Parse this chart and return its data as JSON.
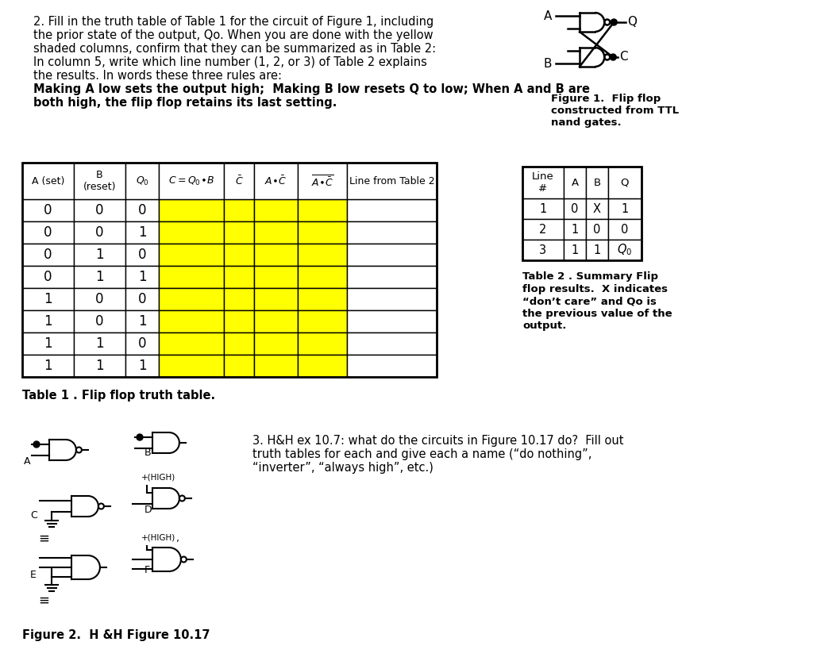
{
  "bg_color": "#ffffff",
  "para_lines_normal": [
    "2. Fill in the truth table of Table 1 for the circuit of Figure 1, including",
    "the prior state of the output, Qo. When you are done with the yellow",
    "shaded columns, confirm that they can be summarized as in Table 2:",
    "In column 5, write which line number (1, 2, or 3) of Table 2 explains",
    "the results. In words these three rules are:  "
  ],
  "para_bold_line1": "Making A low sets the output high;  Making B low resets Q to low; When A and B are",
  "para_bold_line2": "both high, the flip flop retains its last setting.",
  "figure1_caption": "Figure 1.  Flip flop\nconstructed from TTL\nnand gates.",
  "table1_caption": "Table 1 . Flip flop truth table.",
  "table2_caption_lines": [
    "Table 2 . Summary Flip",
    "flop results.  X indicates",
    "“don’t care” and Qo is",
    "the previous value of the",
    "output."
  ],
  "table1_rows_c0": [
    "0",
    "0",
    "0",
    "0",
    "1",
    "1",
    "1",
    "1"
  ],
  "table1_rows_c1": [
    "0",
    "0",
    "1",
    "1",
    "0",
    "0",
    "1",
    "1"
  ],
  "table1_rows_c2": [
    "0",
    "1",
    "0",
    "1",
    "0",
    "1",
    "0",
    "1"
  ],
  "yellow_cols": [
    3,
    4,
    5,
    6
  ],
  "table2_data": [
    [
      "1",
      "0",
      "X",
      "1"
    ],
    [
      "2",
      "1",
      "0",
      "0"
    ],
    [
      "3",
      "1",
      "1",
      "Q0"
    ]
  ],
  "q3_lines": [
    "3. H&H ex 10.7: what do the circuits in Figure 10.17 do?  Fill out",
    "truth tables for each and give each a name (“do nothing”,",
    "“inverter”, “always high”, etc.)"
  ],
  "figure2_caption": "Figure 2.  H &H Figure 10.17"
}
